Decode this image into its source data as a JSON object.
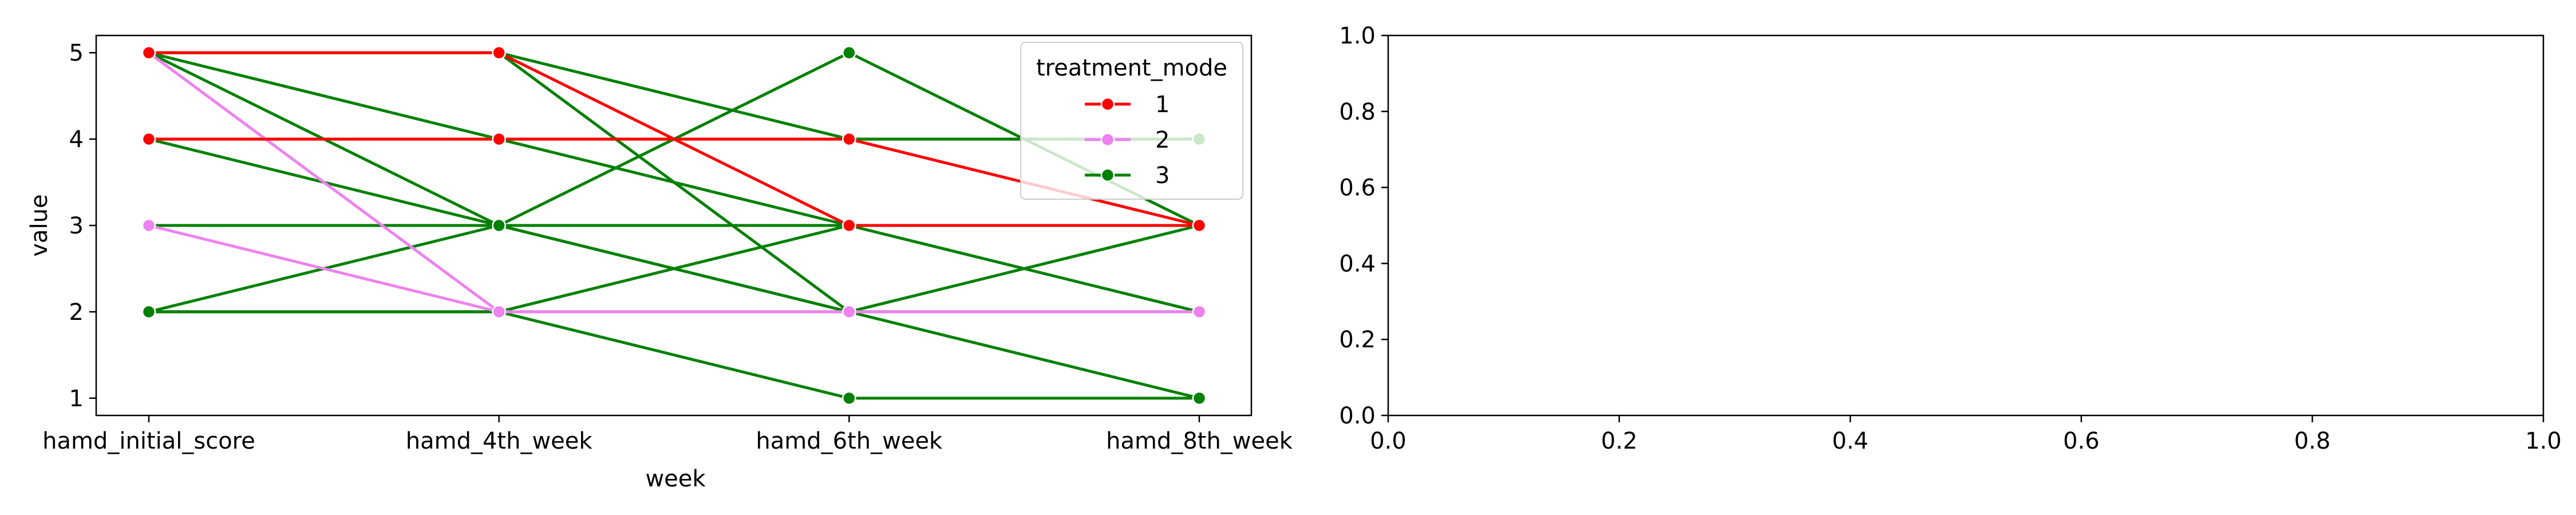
{
  "chart_data": [
    {
      "type": "line",
      "xlabel": "week",
      "ylabel": "value",
      "categories": [
        "hamd_initial_score",
        "hamd_4th_week",
        "hamd_6th_week",
        "hamd_8th_week"
      ],
      "yticks": [
        1,
        2,
        3,
        4,
        5
      ],
      "ylim": [
        0.8,
        5.2
      ],
      "grid": false,
      "legend": {
        "title": "treatment_mode",
        "placement": "top-right",
        "entries": [
          {
            "label": "1",
            "color": "#ff0000"
          },
          {
            "label": "2",
            "color": "#ee82ee"
          },
          {
            "label": "3",
            "color": "#008000"
          }
        ]
      },
      "series": [
        {
          "group": "1",
          "color": "#ff0000",
          "values": [
            5,
            5,
            3,
            3
          ]
        },
        {
          "group": "1",
          "color": "#ff0000",
          "values": [
            4,
            4,
            4,
            3
          ]
        },
        {
          "group": "2",
          "color": "#ee82ee",
          "values": [
            5,
            2,
            2,
            2
          ]
        },
        {
          "group": "2",
          "color": "#ee82ee",
          "values": [
            3,
            2,
            2,
            2
          ]
        },
        {
          "group": "3",
          "color": "#008000",
          "values": [
            5,
            5,
            4,
            4
          ]
        },
        {
          "group": "3",
          "color": "#008000",
          "values": [
            5,
            5,
            2,
            2
          ]
        },
        {
          "group": "3",
          "color": "#008000",
          "values": [
            5,
            4,
            3,
            3
          ]
        },
        {
          "group": "3",
          "color": "#008000",
          "values": [
            5,
            3,
            3,
            3
          ]
        },
        {
          "group": "3",
          "color": "#008000",
          "values": [
            4,
            4,
            4,
            4
          ]
        },
        {
          "group": "3",
          "color": "#008000",
          "values": [
            4,
            3,
            2,
            1
          ]
        },
        {
          "group": "3",
          "color": "#008000",
          "values": [
            3,
            3,
            2,
            2
          ]
        },
        {
          "group": "3",
          "color": "#008000",
          "values": [
            3,
            3,
            3,
            2
          ]
        },
        {
          "group": "3",
          "color": "#008000",
          "values": [
            2,
            2,
            2,
            3
          ]
        },
        {
          "group": "3",
          "color": "#008000",
          "values": [
            2,
            3,
            5,
            3
          ]
        },
        {
          "group": "3",
          "color": "#008000",
          "values": [
            2,
            2,
            1,
            1
          ]
        },
        {
          "group": "3",
          "color": "#008000",
          "values": [
            2,
            2,
            3,
            3
          ]
        }
      ]
    },
    {
      "type": "line",
      "xlim": [
        0.0,
        1.0
      ],
      "ylim": [
        0.0,
        1.0
      ],
      "xticks": [
        "0.0",
        "0.2",
        "0.4",
        "0.6",
        "0.8",
        "1.0"
      ],
      "yticks": [
        "0.0",
        "0.2",
        "0.4",
        "0.6",
        "0.8",
        "1.0"
      ],
      "grid": false,
      "series": []
    }
  ]
}
